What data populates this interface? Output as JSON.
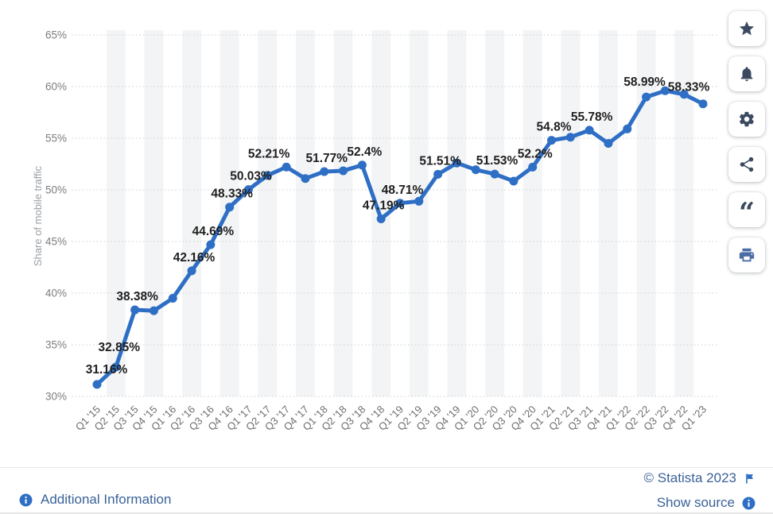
{
  "chart_data": {
    "type": "line",
    "title": "",
    "xlabel": "",
    "ylabel": "Share of mobile traffic",
    "categories": [
      "Q1 '15",
      "Q2 '15",
      "Q3 '15",
      "Q4 '15",
      "Q1 '16",
      "Q2 '16",
      "Q3 '16",
      "Q4 '16",
      "Q1 '17",
      "Q2 '17",
      "Q3 '17",
      "Q4 '17",
      "Q1 '18",
      "Q2 '18",
      "Q3 '18",
      "Q4 '18",
      "Q1 '19",
      "Q2 '19",
      "Q3 '19",
      "Q4 '19",
      "Q1 '20",
      "Q2 '20",
      "Q3 '20",
      "Q4 '20",
      "Q1 '21",
      "Q2 '21",
      "Q3 '21",
      "Q4 '21",
      "Q1 '22",
      "Q2 '22",
      "Q3 '22",
      "Q4 '22",
      "Q1 '23"
    ],
    "values": [
      31.16,
      32.85,
      38.38,
      38.3,
      39.5,
      42.16,
      44.69,
      48.33,
      50.03,
      51.4,
      52.21,
      51.1,
      51.77,
      51.85,
      52.4,
      47.19,
      48.71,
      48.9,
      51.51,
      52.6,
      51.95,
      51.53,
      50.85,
      52.2,
      54.8,
      55.1,
      55.78,
      54.5,
      55.9,
      58.99,
      59.6,
      59.25,
      58.33
    ],
    "point_labels": {
      "0": "31.16%",
      "1": "32.85%",
      "2": "38.38%",
      "5": "42.16%",
      "6": "44.69%",
      "7": "48.33%",
      "8": "50.03%",
      "10": "52.21%",
      "12": "51.77%",
      "14": "52.4%",
      "15": "47.19%",
      "16": "48.71%",
      "18": "51.51%",
      "21": "51.53%",
      "23": "52.2%",
      "24": "54.8%",
      "26": "55.78%",
      "29": "58.99%",
      "32": "58.33%"
    },
    "y_ticks": [
      "30%",
      "35%",
      "40%",
      "45%",
      "50%",
      "55%",
      "60%",
      "65%"
    ],
    "ylim": [
      30,
      65
    ],
    "grid": "horizontal-dotted",
    "x_tick_rotation": -45,
    "legend": "none",
    "line_color": "#2e6fc5",
    "marker_color": "#2e6fc5",
    "band_color": "#f3f4f6",
    "label_color": "#1f1f1f",
    "axis_text_color": "#6f6f6f"
  },
  "sidebar": {
    "buttons": [
      {
        "name": "favorite-button",
        "icon": "star-icon"
      },
      {
        "name": "notifications-button",
        "icon": "bell-icon"
      },
      {
        "name": "settings-button",
        "icon": "gear-icon"
      },
      {
        "name": "share-button",
        "icon": "share-icon"
      },
      {
        "name": "cite-button",
        "icon": "quote-icon"
      },
      {
        "name": "print-button",
        "icon": "printer-icon"
      }
    ]
  },
  "footer": {
    "additional_info_label": "Additional Information",
    "copyright": "© Statista 2023",
    "show_source_label": "Show source"
  }
}
